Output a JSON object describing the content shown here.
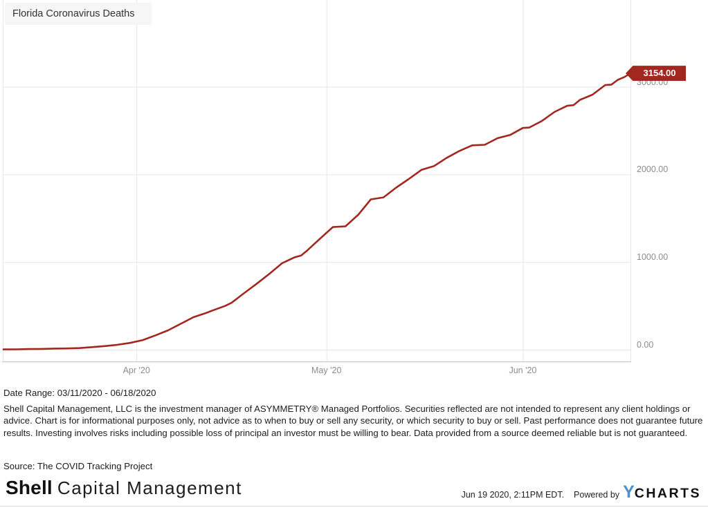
{
  "chart_data": {
    "type": "line",
    "title": "Florida Coronavirus Deaths",
    "x_start": "2020-03-11",
    "x_end": "2020-06-18",
    "ylim": [
      0,
      3990
    ],
    "grid": true,
    "legend": "none",
    "line_color": "#a3261f",
    "grid_color": "#e7e7e7",
    "axis_color": "#cfcfcf",
    "tick_text_color": "#8c8c8c",
    "last_value_label": "3154.00",
    "y_ticks": [
      {
        "value": 3000,
        "label": "3000.00"
      },
      {
        "value": 2000,
        "label": "2000.00"
      },
      {
        "value": 1000,
        "label": "1000.00"
      },
      {
        "value": 0,
        "label": "0.00"
      }
    ],
    "x_ticks": [
      {
        "date": "2020-04-01",
        "label": "Apr '20"
      },
      {
        "date": "2020-05-01",
        "label": "May '20"
      },
      {
        "date": "2020-06-01",
        "label": "Jun '20"
      }
    ],
    "series": [
      {
        "name": "Florida Coronavirus Deaths",
        "points": [
          [
            "2020-03-11",
            3
          ],
          [
            "2020-03-13",
            4
          ],
          [
            "2020-03-15",
            7
          ],
          [
            "2020-03-17",
            9
          ],
          [
            "2020-03-19",
            13
          ],
          [
            "2020-03-21",
            14
          ],
          [
            "2020-03-23",
            18
          ],
          [
            "2020-03-25",
            29
          ],
          [
            "2020-03-27",
            41
          ],
          [
            "2020-03-29",
            56
          ],
          [
            "2020-03-31",
            77
          ],
          [
            "2020-04-02",
            110
          ],
          [
            "2020-04-04",
            163
          ],
          [
            "2020-04-06",
            221
          ],
          [
            "2020-04-08",
            296
          ],
          [
            "2020-04-10",
            371
          ],
          [
            "2020-04-12",
            419
          ],
          [
            "2020-04-13",
            447
          ],
          [
            "2020-04-15",
            499
          ],
          [
            "2020-04-16",
            535
          ],
          [
            "2020-04-18",
            646
          ],
          [
            "2020-04-20",
            754
          ],
          [
            "2020-04-22",
            867
          ],
          [
            "2020-04-24",
            987
          ],
          [
            "2020-04-26",
            1055
          ],
          [
            "2020-04-27",
            1074
          ],
          [
            "2020-04-28",
            1135
          ],
          [
            "2020-04-30",
            1268
          ],
          [
            "2020-05-02",
            1399
          ],
          [
            "2020-05-04",
            1408
          ],
          [
            "2020-05-06",
            1539
          ],
          [
            "2020-05-08",
            1715
          ],
          [
            "2020-05-10",
            1738
          ],
          [
            "2020-05-12",
            1849
          ],
          [
            "2020-05-14",
            1948
          ],
          [
            "2020-05-16",
            2052
          ],
          [
            "2020-05-18",
            2096
          ],
          [
            "2020-05-20",
            2190
          ],
          [
            "2020-05-22",
            2268
          ],
          [
            "2020-05-24",
            2332
          ],
          [
            "2020-05-26",
            2338
          ],
          [
            "2020-05-28",
            2413
          ],
          [
            "2020-05-30",
            2450
          ],
          [
            "2020-06-01",
            2530
          ],
          [
            "2020-06-02",
            2535
          ],
          [
            "2020-06-04",
            2610
          ],
          [
            "2020-06-06",
            2713
          ],
          [
            "2020-06-08",
            2783
          ],
          [
            "2020-06-09",
            2790
          ],
          [
            "2020-06-10",
            2850
          ],
          [
            "2020-06-12",
            2910
          ],
          [
            "2020-06-14",
            3020
          ],
          [
            "2020-06-15",
            3025
          ],
          [
            "2020-06-16",
            3080
          ],
          [
            "2020-06-17",
            3110
          ],
          [
            "2020-06-18",
            3154
          ]
        ]
      }
    ]
  },
  "footer": {
    "date_range": "Date Range: 03/11/2020 - 06/18/2020",
    "disclaimer": "Shell Capital Management, LLC is the investment manager of ASYMMETRY® Managed Portfolios. Securities reflected are not intended to represent any client holdings or advice. Chart is for informational purposes only, not advice as to when to buy or sell any security, or which security to buy or sell. Past performance does not guarantee future results. Investing involves risks including possible loss of principal an investor must be willing to bear. Data provided from a source deemed reliable but is not guaranteed.",
    "source": "Source: The COVID Tracking Project",
    "logo_bold": "Shell",
    "logo_rest": "Capital Management",
    "timestamp": "Jun 19 2020, 2:11PM EDT.",
    "powered_by": "Powered by",
    "brand_y": "Y",
    "brand_charts": "CHARTS",
    "brand_y_color": "#4a90d2"
  }
}
